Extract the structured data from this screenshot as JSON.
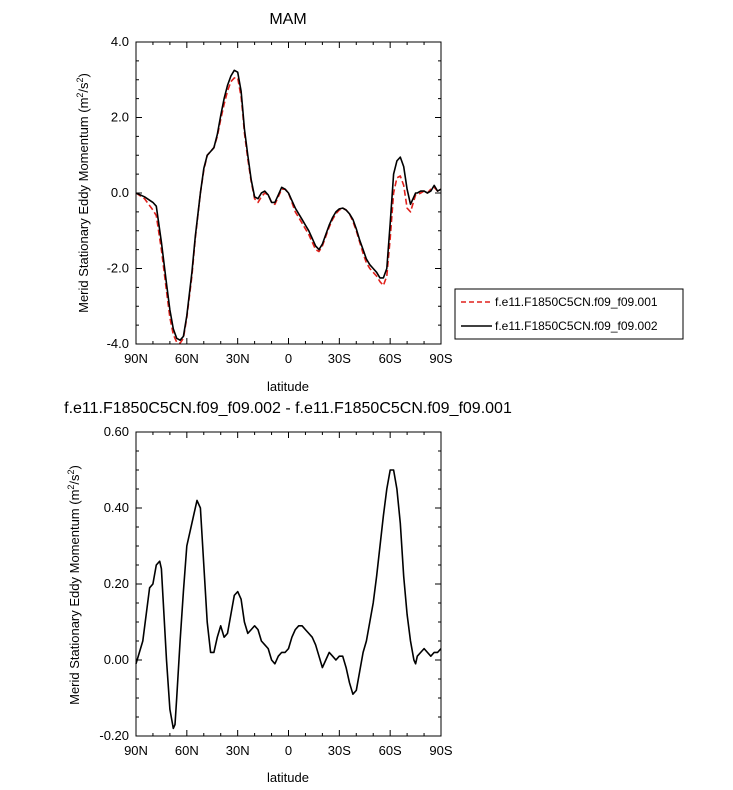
{
  "chart_data": [
    {
      "type": "line",
      "title": "MAM",
      "xlabel": "latitude",
      "ylabel": "Merid Stationary Eddy Momentum (m²/s²)",
      "ylabel_main": "Merid Stationary Eddy Momentum (m",
      "ylabel_sup1": "2",
      "ylabel_mid": "/s",
      "ylabel_sup2": "2",
      "ylabel_end": ")",
      "xlim": [
        90,
        -90
      ],
      "ylim": [
        -4.0,
        4.0
      ],
      "x_ticks": [
        90,
        60,
        30,
        0,
        -30,
        -60,
        -90
      ],
      "x_tick_labels": [
        "90N",
        "60N",
        "30N",
        "0",
        "30S",
        "60S",
        "90S"
      ],
      "y_ticks": [
        4.0,
        2.0,
        0.0,
        -2.0,
        -4.0
      ],
      "y_tick_labels": [
        "4.0",
        "2.0",
        "0.0",
        "-2.0",
        "-4.0"
      ],
      "grid": false,
      "legend_position": "outside-right",
      "x": [
        90,
        85,
        80,
        78,
        75,
        72,
        70,
        68,
        66,
        64,
        62,
        60,
        57,
        55,
        52,
        50,
        48,
        46,
        44,
        42,
        40,
        38,
        36,
        34,
        32,
        30,
        28,
        27,
        26,
        24,
        22,
        20,
        18,
        16,
        14,
        12,
        10,
        8,
        6,
        4,
        2,
        0,
        -2,
        -4,
        -6,
        -8,
        -10,
        -12,
        -14,
        -16,
        -18,
        -20,
        -22,
        -24,
        -26,
        -28,
        -30,
        -32,
        -34,
        -36,
        -38,
        -40,
        -42,
        -44,
        -46,
        -48,
        -50,
        -52,
        -54,
        -56,
        -58,
        -60,
        -62,
        -64,
        -66,
        -68,
        -70,
        -72,
        -74,
        -75,
        -76,
        -78,
        -80,
        -82,
        -84,
        -86,
        -88,
        -90
      ],
      "series": [
        {
          "name": "f.e11.F1850C5CN.f09_f09.001",
          "color": "#e0201b",
          "dash": true,
          "values": [
            0.0,
            -0.15,
            -0.45,
            -0.6,
            -1.5,
            -2.6,
            -3.3,
            -3.75,
            -3.95,
            -3.98,
            -3.85,
            -3.3,
            -2.2,
            -1.2,
            0.0,
            0.6,
            1.0,
            1.1,
            1.2,
            1.5,
            1.95,
            2.35,
            2.7,
            2.95,
            3.05,
            3.05,
            2.55,
            2.1,
            1.6,
            0.9,
            0.3,
            -0.15,
            -0.25,
            -0.1,
            0.0,
            -0.05,
            -0.25,
            -0.3,
            -0.1,
            0.1,
            0.1,
            0.0,
            -0.25,
            -0.5,
            -0.65,
            -0.8,
            -0.95,
            -1.1,
            -1.3,
            -1.5,
            -1.55,
            -1.4,
            -1.15,
            -0.9,
            -0.7,
            -0.55,
            -0.45,
            -0.4,
            -0.45,
            -0.55,
            -0.75,
            -1.0,
            -1.3,
            -1.6,
            -1.85,
            -2.0,
            -2.1,
            -2.2,
            -2.35,
            -2.45,
            -2.2,
            -1.2,
            0.0,
            0.4,
            0.45,
            0.2,
            -0.4,
            -0.5,
            -0.2,
            -0.05,
            -0.05,
            0.0,
            0.05,
            0.0,
            0.1,
            0.15,
            0.05,
            0.1
          ]
        },
        {
          "name": "f.e11.F1850C5CN.f09_f09.002",
          "color": "#000000",
          "dash": false,
          "values": [
            0.0,
            -0.1,
            -0.25,
            -0.35,
            -1.3,
            -2.4,
            -3.1,
            -3.6,
            -3.85,
            -3.9,
            -3.8,
            -3.25,
            -2.1,
            -1.15,
            0.0,
            0.65,
            1.0,
            1.1,
            1.2,
            1.55,
            2.05,
            2.5,
            2.85,
            3.1,
            3.25,
            3.2,
            2.7,
            2.2,
            1.7,
            1.0,
            0.35,
            -0.1,
            -0.15,
            0.0,
            0.05,
            -0.05,
            -0.25,
            -0.25,
            -0.05,
            0.15,
            0.1,
            0.0,
            -0.2,
            -0.4,
            -0.55,
            -0.7,
            -0.85,
            -1.0,
            -1.2,
            -1.4,
            -1.5,
            -1.35,
            -1.1,
            -0.85,
            -0.65,
            -0.5,
            -0.42,
            -0.4,
            -0.45,
            -0.55,
            -0.7,
            -0.95,
            -1.25,
            -1.5,
            -1.75,
            -1.9,
            -2.0,
            -2.1,
            -2.25,
            -2.25,
            -2.0,
            -0.8,
            0.5,
            0.85,
            0.95,
            0.7,
            0.1,
            -0.3,
            -0.1,
            0.0,
            0.0,
            0.05,
            0.05,
            0.0,
            0.05,
            0.2,
            0.05,
            0.1
          ]
        }
      ]
    },
    {
      "type": "line",
      "title": "f.e11.F1850C5CN.f09_f09.002 - f.e11.F1850C5CN.f09_f09.001",
      "xlabel": "latitude",
      "ylabel": "Merid Stationary Eddy Momentum (m²/s²)",
      "ylabel_main": "Merid Stationary Eddy Momentum (m",
      "ylabel_sup1": "2",
      "ylabel_mid": "/s",
      "ylabel_sup2": "2",
      "ylabel_end": ")",
      "xlim": [
        90,
        -90
      ],
      "ylim": [
        -0.2,
        0.6
      ],
      "x_ticks": [
        90,
        60,
        30,
        0,
        -30,
        -60,
        -90
      ],
      "x_tick_labels": [
        "90N",
        "60N",
        "30N",
        "0",
        "30S",
        "60S",
        "90S"
      ],
      "y_ticks": [
        0.6,
        0.4,
        0.2,
        0.0,
        -0.2
      ],
      "y_tick_labels": [
        "0.60",
        "0.40",
        "0.20",
        "0.00",
        "-0.20"
      ],
      "grid": false,
      "series": [
        {
          "color": "#000000",
          "dash": false,
          "x": [
            90,
            88,
            86,
            84,
            82,
            80,
            78,
            76,
            75,
            74,
            72,
            70,
            68,
            67,
            66,
            64,
            62,
            60,
            58,
            56,
            54,
            52,
            50,
            48,
            46,
            44,
            42,
            40,
            38,
            36,
            34,
            32,
            30,
            28,
            26,
            24,
            22,
            20,
            18,
            16,
            14,
            12,
            10,
            8,
            6,
            4,
            2,
            0,
            -2,
            -4,
            -6,
            -8,
            -10,
            -12,
            -14,
            -16,
            -18,
            -20,
            -22,
            -24,
            -26,
            -28,
            -30,
            -32,
            -34,
            -36,
            -38,
            -40,
            -42,
            -44,
            -46,
            -48,
            -50,
            -52,
            -54,
            -56,
            -58,
            -60,
            -62,
            -64,
            -66,
            -68,
            -70,
            -72,
            -74,
            -75,
            -76,
            -78,
            -80,
            -82,
            -84,
            -86,
            -88,
            -90
          ],
          "values": [
            -0.01,
            0.02,
            0.05,
            0.12,
            0.19,
            0.2,
            0.25,
            0.26,
            0.24,
            0.16,
            0.0,
            -0.13,
            -0.18,
            -0.17,
            -0.1,
            0.05,
            0.18,
            0.3,
            0.34,
            0.38,
            0.42,
            0.4,
            0.25,
            0.1,
            0.02,
            0.02,
            0.06,
            0.09,
            0.06,
            0.07,
            0.12,
            0.17,
            0.18,
            0.16,
            0.1,
            0.07,
            0.08,
            0.09,
            0.08,
            0.05,
            0.04,
            0.03,
            0.0,
            -0.01,
            0.01,
            0.02,
            0.02,
            0.03,
            0.06,
            0.08,
            0.09,
            0.09,
            0.08,
            0.07,
            0.06,
            0.04,
            0.01,
            -0.02,
            0.0,
            0.02,
            0.01,
            0.0,
            0.01,
            0.01,
            -0.02,
            -0.06,
            -0.09,
            -0.08,
            -0.03,
            0.02,
            0.05,
            0.1,
            0.15,
            0.22,
            0.3,
            0.38,
            0.45,
            0.5,
            0.5,
            0.45,
            0.36,
            0.22,
            0.12,
            0.05,
            0.0,
            -0.01,
            0.01,
            0.02,
            0.03,
            0.02,
            0.01,
            0.02,
            0.02,
            0.03
          ]
        }
      ]
    }
  ]
}
